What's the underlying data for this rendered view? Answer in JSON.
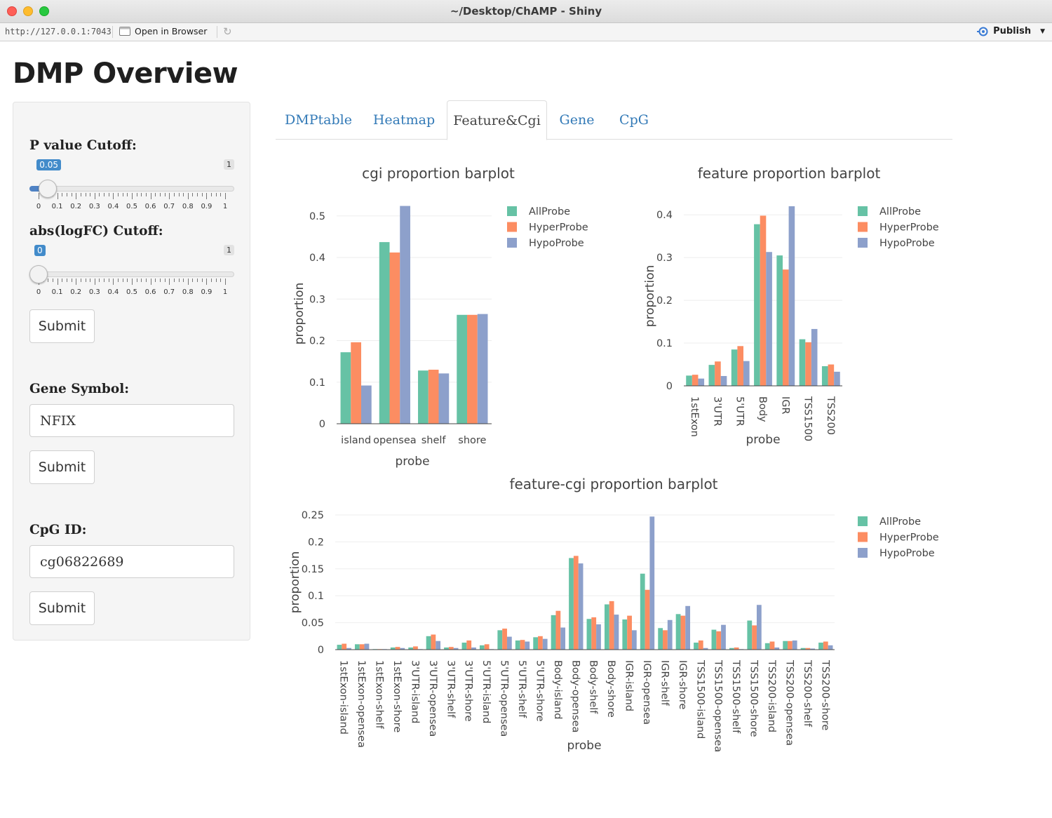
{
  "window": {
    "title": "~/Desktop/ChAMP - Shiny",
    "url": "http://127.0.0.1:7043",
    "open_in_browser": "Open in Browser",
    "publish": "Publish"
  },
  "page": {
    "title": "DMP Overview"
  },
  "sidebar": {
    "pvalue": {
      "label": "P value Cutoff:",
      "value": "0.05",
      "max": "1",
      "value_fraction": 0.05,
      "tick_labels": [
        "0",
        "0.1",
        "0.2",
        "0.3",
        "0.4",
        "0.5",
        "0.6",
        "0.7",
        "0.8",
        "0.9",
        "1"
      ]
    },
    "logfc": {
      "label": "abs(logFC) Cutoff:",
      "value": "0",
      "max": "1",
      "value_fraction": 0,
      "tick_labels": [
        "0",
        "0.1",
        "0.2",
        "0.3",
        "0.4",
        "0.5",
        "0.6",
        "0.7",
        "0.8",
        "0.9",
        "1"
      ]
    },
    "submit1": "Submit",
    "gene": {
      "label": "Gene Symbol:",
      "value": "NFIX"
    },
    "submit2": "Submit",
    "cpg": {
      "label": "CpG ID:",
      "value": "cg06822689"
    },
    "submit3": "Submit"
  },
  "tabs": [
    "DMPtable",
    "Heatmap",
    "Feature&Cgi",
    "Gene",
    "CpG"
  ],
  "active_tab": "Feature&Cgi",
  "colors": {
    "AllProbe": "#66c2a5",
    "HyperProbe": "#fc8d62",
    "HypoProbe": "#8da0cb"
  },
  "chart_data": [
    {
      "type": "bar",
      "title": "cgi proportion barplot",
      "xlabel": "probe",
      "ylabel": "proportion",
      "ylim": [
        0,
        0.53
      ],
      "yticks": [
        "0",
        "0.1",
        "0.2",
        "0.3",
        "0.4",
        "0.5"
      ],
      "ytick_values": [
        0,
        0.1,
        0.2,
        0.3,
        0.4,
        0.5
      ],
      "categories": [
        "island",
        "opensea",
        "shelf",
        "shore"
      ],
      "series": [
        {
          "name": "AllProbe",
          "values": [
            0.172,
            0.437,
            0.128,
            0.262
          ]
        },
        {
          "name": "HyperProbe",
          "values": [
            0.196,
            0.412,
            0.13,
            0.262
          ]
        },
        {
          "name": "HypoProbe",
          "values": [
            0.092,
            0.524,
            0.121,
            0.264
          ]
        }
      ],
      "legend": "top-right"
    },
    {
      "type": "bar",
      "title": "feature proportion barplot",
      "xlabel": "probe",
      "ylabel": "proportion",
      "ylim": [
        0,
        0.42
      ],
      "yticks": [
        "0",
        "0.1",
        "0.2",
        "0.3",
        "0.4"
      ],
      "ytick_values": [
        0,
        0.1,
        0.2,
        0.3,
        0.4
      ],
      "categories": [
        "1stExon",
        "3'UTR",
        "5'UTR",
        "Body",
        "IGR",
        "TSS1500",
        "TSS200"
      ],
      "series": [
        {
          "name": "AllProbe",
          "values": [
            0.024,
            0.049,
            0.085,
            0.378,
            0.305,
            0.109,
            0.046
          ]
        },
        {
          "name": "HyperProbe",
          "values": [
            0.026,
            0.057,
            0.093,
            0.398,
            0.272,
            0.102,
            0.05
          ]
        },
        {
          "name": "HypoProbe",
          "values": [
            0.017,
            0.023,
            0.058,
            0.313,
            0.42,
            0.133,
            0.033
          ]
        }
      ],
      "legend": "top-right"
    },
    {
      "type": "bar",
      "title": "feature-cgi proportion barplot",
      "xlabel": "probe",
      "ylabel": "proportion",
      "ylim": [
        0,
        0.25
      ],
      "yticks": [
        "0",
        "0.05",
        "0.1",
        "0.15",
        "0.2",
        "0.25"
      ],
      "ytick_values": [
        0,
        0.05,
        0.1,
        0.15,
        0.2,
        0.25
      ],
      "categories": [
        "1stExon-island",
        "1stExon-opensea",
        "1stExon-shelf",
        "1stExon-shore",
        "3'UTR-island",
        "3'UTR-opensea",
        "3'UTR-shelf",
        "3'UTR-shore",
        "5'UTR-island",
        "5'UTR-opensea",
        "5'UTR-shelf",
        "5'UTR-shore",
        "Body-island",
        "Body-opensea",
        "Body-shelf",
        "Body-shore",
        "IGR-island",
        "IGR-opensea",
        "IGR-shelf",
        "IGR-shore",
        "TSS1500-island",
        "TSS1500-opensea",
        "TSS1500-shelf",
        "TSS1500-shore",
        "TSS200-island",
        "TSS200-opensea",
        "TSS200-shelf",
        "TSS200-shore"
      ],
      "series": [
        {
          "name": "AllProbe",
          "values": [
            0.009,
            0.01,
            0.001,
            0.004,
            0.004,
            0.025,
            0.004,
            0.013,
            0.008,
            0.036,
            0.017,
            0.023,
            0.064,
            0.17,
            0.057,
            0.084,
            0.056,
            0.141,
            0.04,
            0.066,
            0.013,
            0.037,
            0.003,
            0.054,
            0.012,
            0.016,
            0.003,
            0.013
          ]
        },
        {
          "name": "HyperProbe",
          "values": [
            0.011,
            0.01,
            0.001,
            0.005,
            0.006,
            0.028,
            0.005,
            0.017,
            0.01,
            0.039,
            0.018,
            0.025,
            0.072,
            0.174,
            0.06,
            0.09,
            0.063,
            0.111,
            0.036,
            0.063,
            0.017,
            0.034,
            0.004,
            0.045,
            0.015,
            0.016,
            0.003,
            0.015
          ]
        },
        {
          "name": "HypoProbe",
          "values": [
            0.003,
            0.011,
            0.001,
            0.003,
            0.001,
            0.016,
            0.003,
            0.004,
            0.001,
            0.024,
            0.015,
            0.02,
            0.041,
            0.16,
            0.047,
            0.065,
            0.036,
            0.247,
            0.055,
            0.081,
            0.003,
            0.046,
            0.001,
            0.083,
            0.004,
            0.017,
            0.002,
            0.008
          ]
        }
      ],
      "legend": "top-right"
    }
  ]
}
